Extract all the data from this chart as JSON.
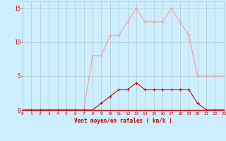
{
  "x": [
    0,
    1,
    2,
    3,
    4,
    5,
    6,
    7,
    8,
    9,
    10,
    11,
    12,
    13,
    14,
    15,
    16,
    17,
    18,
    19,
    20,
    21,
    22,
    23
  ],
  "y_rafales": [
    0,
    0,
    0,
    0,
    0,
    0,
    0,
    0,
    8,
    8,
    11,
    11,
    13,
    15,
    13,
    13,
    13,
    15,
    13,
    11,
    5,
    5,
    5,
    5
  ],
  "y_moyen": [
    0,
    0,
    0,
    0,
    0,
    0,
    0,
    0,
    0,
    1,
    2,
    3,
    3,
    4,
    3,
    3,
    3,
    3,
    3,
    3,
    1,
    0,
    0,
    0
  ],
  "line_color_rafales": "#ff9999",
  "line_color_moyen": "#cc0000",
  "bg_color": "#cceeff",
  "grid_color": "#aacccc",
  "xlabel": "Vent moyen/en rafales ( km/h )",
  "xlabel_color": "#cc0000",
  "yticks": [
    0,
    5,
    10,
    15
  ],
  "xlim": [
    0,
    23
  ],
  "ylim": [
    0,
    16
  ],
  "marker_size": 2.0
}
